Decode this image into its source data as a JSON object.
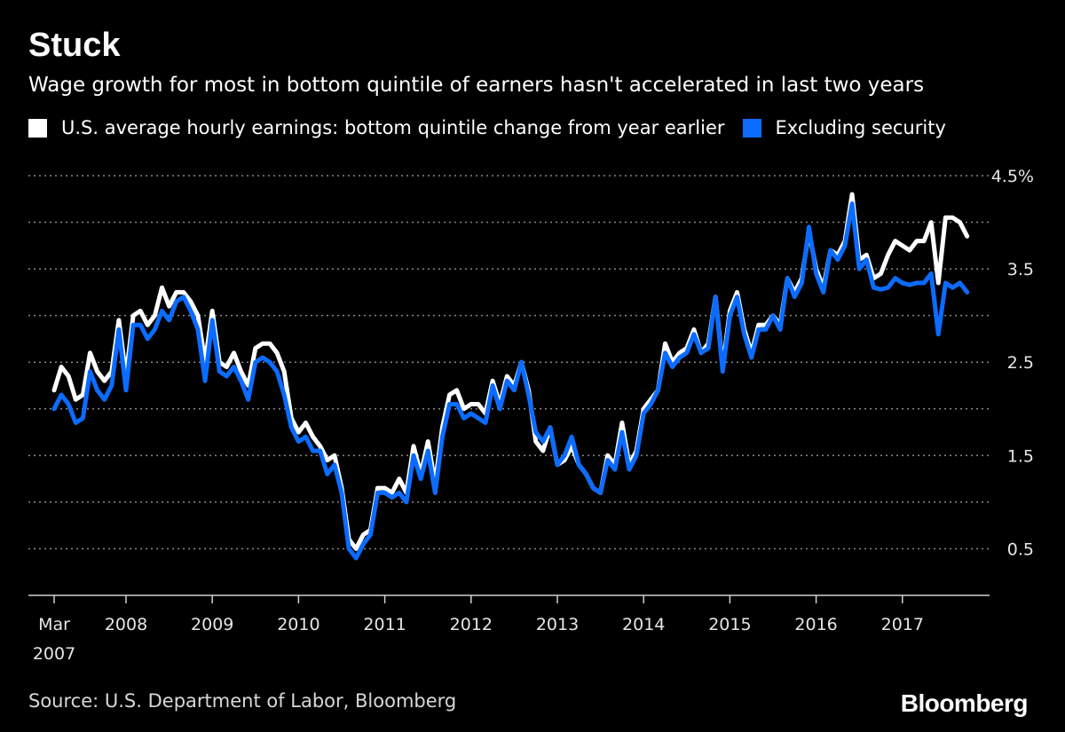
{
  "title": "Stuck",
  "subtitle": "Wage growth for most in bottom quintile of earners hasn't accelerated in last two years",
  "source": "Source: U.S. Department of Labor, Bloomberg",
  "logo": "Bloomberg",
  "colors": {
    "background": "#000000",
    "series_white": "#ffffff",
    "series_blue": "#0b6cff",
    "grid": "#888888"
  },
  "chart_data": {
    "type": "line",
    "title": "Stuck",
    "subtitle": "Wage growth for most in bottom quintile of earners hasn't accelerated in last two years",
    "x_start": "2007-03",
    "x_frequency": "monthly",
    "x_tick_labels": [
      {
        "date": "2007-03",
        "label": "Mar",
        "label2": "2007"
      },
      {
        "date": "2008-01",
        "label": "2008"
      },
      {
        "date": "2009-01",
        "label": "2009"
      },
      {
        "date": "2010-01",
        "label": "2010"
      },
      {
        "date": "2011-01",
        "label": "2011"
      },
      {
        "date": "2012-01",
        "label": "2012"
      },
      {
        "date": "2013-01",
        "label": "2013"
      },
      {
        "date": "2014-01",
        "label": "2014"
      },
      {
        "date": "2015-01",
        "label": "2015"
      },
      {
        "date": "2016-01",
        "label": "2016"
      },
      {
        "date": "2017-01",
        "label": "2017"
      }
    ],
    "ylim": [
      0,
      4.5
    ],
    "y_gridlines": [
      0.5,
      1.0,
      1.5,
      2.0,
      2.5,
      3.0,
      3.5,
      4.0,
      4.5
    ],
    "y_tick_labels": [
      {
        "value": 4.5,
        "label": "4.5%"
      },
      {
        "value": 3.5,
        "label": "3.5"
      },
      {
        "value": 2.5,
        "label": "2.5"
      },
      {
        "value": 1.5,
        "label": "1.5"
      },
      {
        "value": 0.5,
        "label": "0.5"
      }
    ],
    "grid": true,
    "legend_placement": "top-left",
    "series": [
      {
        "name": "U.S. average hourly earnings: bottom quintile change from year earlier",
        "color": "#ffffff",
        "values": [
          2.2,
          2.45,
          2.35,
          2.1,
          2.15,
          2.6,
          2.4,
          2.3,
          2.4,
          2.95,
          2.35,
          3.0,
          3.05,
          2.9,
          3.0,
          3.3,
          3.1,
          3.25,
          3.25,
          3.15,
          3.0,
          2.5,
          3.05,
          2.5,
          2.45,
          2.6,
          2.4,
          2.25,
          2.65,
          2.7,
          2.7,
          2.6,
          2.4,
          1.9,
          1.75,
          1.85,
          1.7,
          1.6,
          1.45,
          1.5,
          1.15,
          0.6,
          0.5,
          0.65,
          0.7,
          1.15,
          1.15,
          1.1,
          1.25,
          1.1,
          1.6,
          1.3,
          1.65,
          1.2,
          1.8,
          2.15,
          2.2,
          2.0,
          2.05,
          2.05,
          1.95,
          2.3,
          2.05,
          2.35,
          2.25,
          2.5,
          2.2,
          1.65,
          1.55,
          1.8,
          1.4,
          1.45,
          1.6,
          1.4,
          1.3,
          1.15,
          1.1,
          1.5,
          1.4,
          1.85,
          1.4,
          1.55,
          2.0,
          2.1,
          2.2,
          2.7,
          2.5,
          2.6,
          2.65,
          2.85,
          2.6,
          2.7,
          3.2,
          2.45,
          3.05,
          3.25,
          2.85,
          2.6,
          2.9,
          2.9,
          3.0,
          2.9,
          3.4,
          3.25,
          3.4,
          3.9,
          3.5,
          3.3,
          3.7,
          3.65,
          3.8,
          4.3,
          3.6,
          3.65,
          3.4,
          3.45,
          3.65,
          3.8,
          3.75,
          3.7,
          3.8,
          3.8,
          4.0,
          3.35,
          4.05,
          4.05,
          4.0,
          3.85
        ]
      },
      {
        "name": "Excluding security",
        "color": "#0b6cff",
        "values": [
          2.0,
          2.15,
          2.05,
          1.85,
          1.9,
          2.4,
          2.2,
          2.1,
          2.25,
          2.85,
          2.2,
          2.9,
          2.9,
          2.75,
          2.85,
          3.05,
          2.95,
          3.15,
          3.2,
          3.05,
          2.85,
          2.3,
          2.95,
          2.4,
          2.35,
          2.45,
          2.3,
          2.1,
          2.5,
          2.55,
          2.5,
          2.4,
          2.15,
          1.8,
          1.65,
          1.7,
          1.55,
          1.55,
          1.3,
          1.4,
          1.1,
          0.5,
          0.4,
          0.55,
          0.65,
          1.1,
          1.1,
          1.05,
          1.1,
          1.0,
          1.5,
          1.25,
          1.55,
          1.1,
          1.7,
          2.05,
          2.05,
          1.9,
          1.95,
          1.9,
          1.85,
          2.25,
          2.0,
          2.3,
          2.2,
          2.5,
          2.15,
          1.75,
          1.65,
          1.8,
          1.4,
          1.5,
          1.7,
          1.4,
          1.3,
          1.15,
          1.1,
          1.45,
          1.35,
          1.75,
          1.35,
          1.5,
          1.95,
          2.05,
          2.2,
          2.6,
          2.45,
          2.55,
          2.6,
          2.8,
          2.6,
          2.65,
          3.2,
          2.4,
          3.0,
          3.2,
          2.8,
          2.55,
          2.85,
          2.85,
          3.0,
          2.85,
          3.4,
          3.2,
          3.35,
          3.95,
          3.45,
          3.25,
          3.7,
          3.6,
          3.75,
          4.2,
          3.5,
          3.6,
          3.3,
          3.28,
          3.3,
          3.4,
          3.35,
          3.33,
          3.35,
          3.35,
          3.45,
          2.8,
          3.35,
          3.3,
          3.35,
          3.25
        ]
      }
    ]
  }
}
